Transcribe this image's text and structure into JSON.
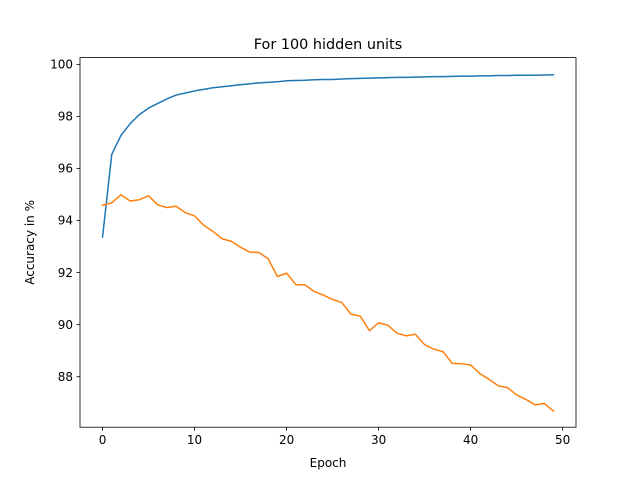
{
  "chart_data": {
    "type": "line",
    "title": "For 100 hidden units",
    "xlabel": "Epoch",
    "ylabel": "Accuracy in %",
    "xlim": [
      -2.45,
      51.45
    ],
    "ylim": [
      86.06,
      100.26
    ],
    "xticks": [
      0,
      10,
      20,
      30,
      40,
      50
    ],
    "yticks": [
      88,
      90,
      92,
      94,
      96,
      98,
      100
    ],
    "grid": false,
    "legend": "none",
    "x": [
      0,
      1,
      2,
      3,
      4,
      5,
      6,
      7,
      8,
      9,
      10,
      11,
      12,
      13,
      14,
      15,
      16,
      17,
      18,
      19,
      20,
      21,
      22,
      23,
      24,
      25,
      26,
      27,
      28,
      29,
      30,
      31,
      32,
      33,
      34,
      35,
      36,
      37,
      38,
      39,
      40,
      41,
      42,
      43,
      44,
      45,
      46,
      47,
      48,
      49
    ],
    "series": [
      {
        "color": "#1f77b4",
        "values": [
          93.37,
          96.54,
          97.27,
          97.72,
          98.07,
          98.32,
          98.5,
          98.67,
          98.82,
          98.9,
          98.98,
          99.04,
          99.1,
          99.14,
          99.18,
          99.22,
          99.25,
          99.29,
          99.31,
          99.33,
          99.37,
          99.38,
          99.39,
          99.41,
          99.42,
          99.42,
          99.44,
          99.45,
          99.46,
          99.47,
          99.48,
          99.49,
          99.5,
          99.5,
          99.51,
          99.52,
          99.53,
          99.53,
          99.54,
          99.55,
          99.55,
          99.56,
          99.56,
          99.57,
          99.57,
          99.58,
          99.58,
          99.58,
          99.59,
          99.6
        ]
      },
      {
        "color": "#ff7f0e",
        "values": [
          94.59,
          94.68,
          94.99,
          94.75,
          94.8,
          94.95,
          94.6,
          94.5,
          94.55,
          94.3,
          94.18,
          93.82,
          93.58,
          93.3,
          93.2,
          92.97,
          92.79,
          92.77,
          92.53,
          91.85,
          91.98,
          91.54,
          91.53,
          91.27,
          91.13,
          90.97,
          90.85,
          90.4,
          90.33,
          89.77,
          90.07,
          89.98,
          89.67,
          89.57,
          89.63,
          89.23,
          89.06,
          88.96,
          88.51,
          88.5,
          88.45,
          88.12,
          87.9,
          87.65,
          87.58,
          87.3,
          87.13,
          86.92,
          86.97,
          86.68
        ]
      }
    ]
  }
}
